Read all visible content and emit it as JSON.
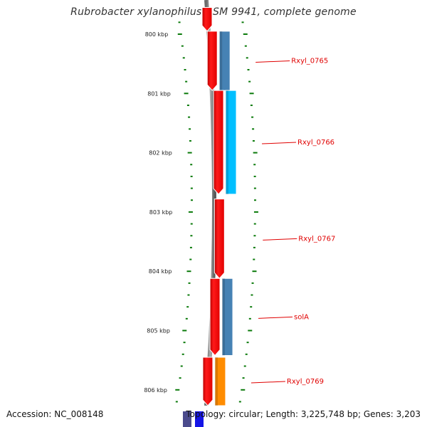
{
  "title": "Rubrobacter xylanophilus DSM 9941, complete genome",
  "axis": {
    "unit": "kbp",
    "ticks": [
      {
        "kbp": 800,
        "label": "800 kbp"
      },
      {
        "kbp": 801,
        "label": "801 kbp"
      },
      {
        "kbp": 802,
        "label": "802 kbp"
      },
      {
        "kbp": 803,
        "label": "803 kbp"
      },
      {
        "kbp": 804,
        "label": "804 kbp"
      },
      {
        "kbp": 805,
        "label": "805 kbp"
      },
      {
        "kbp": 806,
        "label": "806 kbp"
      }
    ]
  },
  "genes": [
    {
      "label": "",
      "start_kbp": 799.55,
      "end_kbp": 799.95,
      "strand": "forward",
      "color": "#ff0000",
      "product_color": ""
    },
    {
      "label": "Rxyl_0765",
      "start_kbp": 799.95,
      "end_kbp": 800.95,
      "strand": "forward",
      "color": "#ff0000",
      "product_color": "#4682b4"
    },
    {
      "label": "Rxyl_0766",
      "start_kbp": 800.95,
      "end_kbp": 802.7,
      "strand": "forward",
      "color": "#ff0000",
      "product_color": "#00bfff"
    },
    {
      "label": "Rxyl_0767",
      "start_kbp": 802.78,
      "end_kbp": 804.12,
      "strand": "forward",
      "color": "#ff0000",
      "product_color": ""
    },
    {
      "label": "solA",
      "start_kbp": 804.12,
      "end_kbp": 805.42,
      "strand": "forward",
      "color": "#ff0000",
      "product_color": "#4682b4"
    },
    {
      "label": "Rxyl_0769",
      "start_kbp": 805.45,
      "end_kbp": 806.3,
      "strand": "forward",
      "color": "#ff0000",
      "product_color": "#ff8c00"
    }
  ],
  "footer": {
    "accession": "Accession: NC_008148",
    "stats": "Topology: circular; Length: 3,225,748 bp; Genes: 3,203"
  }
}
